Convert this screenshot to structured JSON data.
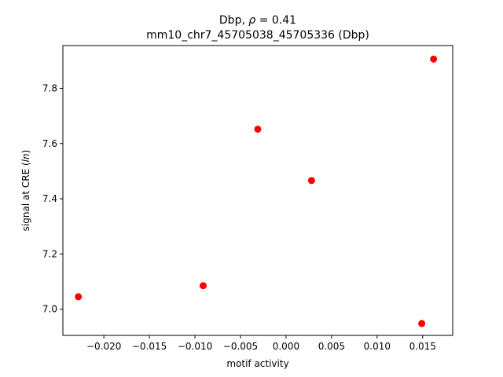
{
  "chart_data": {
    "type": "scatter",
    "title_line1_text": "Dbp, ",
    "title_line1_symbol": "ρ",
    "title_line1_value": " = 0.41",
    "title_line2": "mm10_chr7_45705038_45705336 (Dbp)",
    "xlabel": "motif activity",
    "ylabel_prefix": "signal at CRE (",
    "ylabel_italic": "ln",
    "ylabel_suffix": ")",
    "xlim": [
      -0.0245,
      0.0183
    ],
    "ylim": [
      6.905,
      7.955
    ],
    "x_ticks": [
      -0.02,
      -0.015,
      -0.01,
      -0.005,
      0.0,
      0.005,
      0.01,
      0.015
    ],
    "x_tick_labels": [
      "−0.020",
      "−0.015",
      "−0.010",
      "−0.005",
      "0.000",
      "0.005",
      "0.010",
      "0.015"
    ],
    "y_ticks": [
      7.0,
      7.2,
      7.4,
      7.6,
      7.8
    ],
    "y_tick_labels": [
      "7.0",
      "7.2",
      "7.4",
      "7.6",
      "7.8"
    ],
    "grid": false,
    "marker_color": "#ff0000",
    "points": [
      {
        "x": -0.0228,
        "y": 7.045
      },
      {
        "x": -0.0091,
        "y": 7.085
      },
      {
        "x": -0.0031,
        "y": 7.652
      },
      {
        "x": 0.0028,
        "y": 7.466
      },
      {
        "x": 0.0149,
        "y": 6.948
      },
      {
        "x": 0.0162,
        "y": 7.906
      }
    ]
  }
}
